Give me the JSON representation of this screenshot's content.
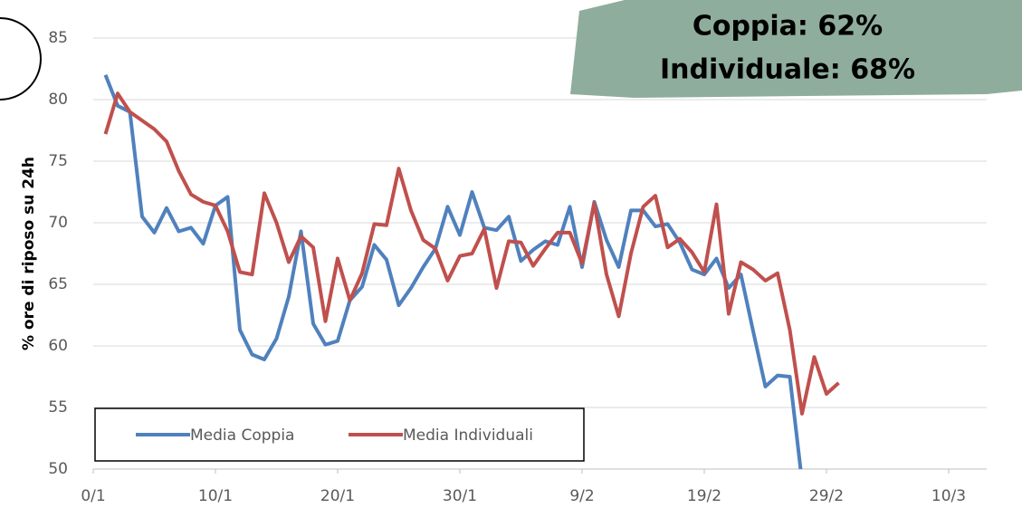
{
  "chart_data": {
    "type": "line",
    "y_label": "% ore di riposo su 24h",
    "annotations": [
      "Coppia: 62%",
      "Individuale: 68%"
    ],
    "x": [
      1,
      2,
      3,
      4,
      5,
      6,
      7,
      8,
      9,
      10,
      11,
      12,
      13,
      14,
      15,
      16,
      17,
      18,
      19,
      20,
      21,
      22,
      23,
      24,
      25,
      26,
      27,
      28,
      29,
      30,
      31,
      32,
      33,
      34,
      35,
      36,
      37,
      38,
      39,
      40,
      41,
      42,
      43,
      44,
      45,
      46,
      47,
      48,
      49,
      50,
      51,
      52,
      53,
      54,
      55,
      56,
      57,
      58,
      59,
      60,
      61
    ],
    "series": [
      {
        "name": "Media Coppia",
        "color": "#4f81bd",
        "values": [
          82,
          79.5,
          79,
          70.5,
          69.2,
          71.2,
          69.3,
          69.6,
          68.3,
          71.4,
          72.1,
          61.3,
          59.3,
          58.9,
          60.6,
          64,
          69.3,
          61.8,
          60.1,
          60.4,
          63.7,
          64.8,
          68.2,
          67,
          63.3,
          64.7,
          66.4,
          67.9,
          71.3,
          69,
          72.5,
          69.6,
          69.4,
          70.5,
          66.9,
          67.8,
          68.5,
          68.2,
          71.3,
          66.4,
          71.7,
          68.6,
          66.4,
          71,
          71,
          69.7,
          69.9,
          68.4,
          66.2,
          65.8,
          67.1,
          64.7,
          65.8,
          61.2,
          56.7,
          57.6,
          57.5,
          49,
          null,
          null,
          null
        ]
      },
      {
        "name": "Media Individuali",
        "color": "#c0504d",
        "values": [
          77.2,
          80.5,
          79,
          78.3,
          77.6,
          76.6,
          74.2,
          72.3,
          71.7,
          71.4,
          69.3,
          66,
          65.8,
          72.4,
          70,
          66.8,
          68.9,
          68,
          62,
          67.1,
          63.7,
          65.9,
          69.9,
          69.8,
          74.4,
          71,
          68.6,
          67.9,
          65.3,
          67.3,
          67.5,
          69.5,
          64.7,
          68.5,
          68.4,
          66.5,
          67.9,
          69.2,
          69.2,
          66.7,
          71.6,
          65.8,
          62.4,
          67.5,
          71.3,
          72.2,
          68,
          68.7,
          67.6,
          66,
          71.5,
          62.6,
          66.8,
          66.2,
          65.3,
          65.9,
          61.3,
          54.5,
          59.1,
          56.1,
          57
        ]
      }
    ],
    "xlim": [
      0,
      70
    ],
    "xticks": [
      {
        "value": 0,
        "label": "0/1"
      },
      {
        "value": 10,
        "label": "10/1"
      },
      {
        "value": 20,
        "label": "20/1"
      },
      {
        "value": 30,
        "label": "30/1"
      },
      {
        "value": 40,
        "label": "9/2"
      },
      {
        "value": 50,
        "label": "19/2"
      },
      {
        "value": 60,
        "label": "29/2"
      },
      {
        "value": 70,
        "label": "10/3"
      }
    ],
    "ylim": [
      50,
      85
    ],
    "yticks": [
      50,
      55,
      60,
      65,
      70,
      75,
      80,
      85
    ],
    "grid": true
  }
}
